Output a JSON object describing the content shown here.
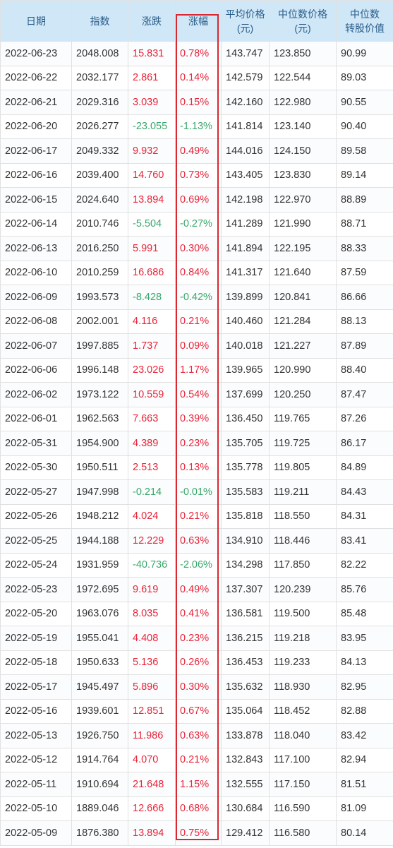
{
  "headers": {
    "date": [
      "日期"
    ],
    "index": [
      "指数"
    ],
    "change": [
      "涨跌"
    ],
    "pct": [
      "涨幅"
    ],
    "avg_price": [
      "平均价格",
      "(元)"
    ],
    "median_price": [
      "中位数价格",
      "(元)"
    ],
    "median_conv": [
      "中位数",
      "转股价值"
    ]
  },
  "rows": [
    {
      "date": "2022-06-23",
      "index": "2048.008",
      "change": "15.831",
      "pct": "0.78%",
      "avg": "143.747",
      "median": "123.850",
      "conv": "90.99",
      "dir": "up"
    },
    {
      "date": "2022-06-22",
      "index": "2032.177",
      "change": "2.861",
      "pct": "0.14%",
      "avg": "142.579",
      "median": "122.544",
      "conv": "89.03",
      "dir": "up"
    },
    {
      "date": "2022-06-21",
      "index": "2029.316",
      "change": "3.039",
      "pct": "0.15%",
      "avg": "142.160",
      "median": "122.980",
      "conv": "90.55",
      "dir": "up"
    },
    {
      "date": "2022-06-20",
      "index": "2026.277",
      "change": "-23.055",
      "pct": "-1.13%",
      "avg": "141.814",
      "median": "123.140",
      "conv": "90.40",
      "dir": "down"
    },
    {
      "date": "2022-06-17",
      "index": "2049.332",
      "change": "9.932",
      "pct": "0.49%",
      "avg": "144.016",
      "median": "124.150",
      "conv": "89.58",
      "dir": "up"
    },
    {
      "date": "2022-06-16",
      "index": "2039.400",
      "change": "14.760",
      "pct": "0.73%",
      "avg": "143.405",
      "median": "123.830",
      "conv": "89.14",
      "dir": "up"
    },
    {
      "date": "2022-06-15",
      "index": "2024.640",
      "change": "13.894",
      "pct": "0.69%",
      "avg": "142.198",
      "median": "122.970",
      "conv": "88.89",
      "dir": "up"
    },
    {
      "date": "2022-06-14",
      "index": "2010.746",
      "change": "-5.504",
      "pct": "-0.27%",
      "avg": "141.289",
      "median": "121.990",
      "conv": "88.71",
      "dir": "down"
    },
    {
      "date": "2022-06-13",
      "index": "2016.250",
      "change": "5.991",
      "pct": "0.30%",
      "avg": "141.894",
      "median": "122.195",
      "conv": "88.33",
      "dir": "up"
    },
    {
      "date": "2022-06-10",
      "index": "2010.259",
      "change": "16.686",
      "pct": "0.84%",
      "avg": "141.317",
      "median": "121.640",
      "conv": "87.59",
      "dir": "up"
    },
    {
      "date": "2022-06-09",
      "index": "1993.573",
      "change": "-8.428",
      "pct": "-0.42%",
      "avg": "139.899",
      "median": "120.841",
      "conv": "86.66",
      "dir": "down"
    },
    {
      "date": "2022-06-08",
      "index": "2002.001",
      "change": "4.116",
      "pct": "0.21%",
      "avg": "140.460",
      "median": "121.284",
      "conv": "88.13",
      "dir": "up"
    },
    {
      "date": "2022-06-07",
      "index": "1997.885",
      "change": "1.737",
      "pct": "0.09%",
      "avg": "140.018",
      "median": "121.227",
      "conv": "87.89",
      "dir": "up"
    },
    {
      "date": "2022-06-06",
      "index": "1996.148",
      "change": "23.026",
      "pct": "1.17%",
      "avg": "139.965",
      "median": "120.990",
      "conv": "88.40",
      "dir": "up"
    },
    {
      "date": "2022-06-02",
      "index": "1973.122",
      "change": "10.559",
      "pct": "0.54%",
      "avg": "137.699",
      "median": "120.250",
      "conv": "87.47",
      "dir": "up"
    },
    {
      "date": "2022-06-01",
      "index": "1962.563",
      "change": "7.663",
      "pct": "0.39%",
      "avg": "136.450",
      "median": "119.765",
      "conv": "87.26",
      "dir": "up"
    },
    {
      "date": "2022-05-31",
      "index": "1954.900",
      "change": "4.389",
      "pct": "0.23%",
      "avg": "135.705",
      "median": "119.725",
      "conv": "86.17",
      "dir": "up"
    },
    {
      "date": "2022-05-30",
      "index": "1950.511",
      "change": "2.513",
      "pct": "0.13%",
      "avg": "135.778",
      "median": "119.805",
      "conv": "84.89",
      "dir": "up"
    },
    {
      "date": "2022-05-27",
      "index": "1947.998",
      "change": "-0.214",
      "pct": "-0.01%",
      "avg": "135.583",
      "median": "119.211",
      "conv": "84.43",
      "dir": "down"
    },
    {
      "date": "2022-05-26",
      "index": "1948.212",
      "change": "4.024",
      "pct": "0.21%",
      "avg": "135.818",
      "median": "118.550",
      "conv": "84.31",
      "dir": "up"
    },
    {
      "date": "2022-05-25",
      "index": "1944.188",
      "change": "12.229",
      "pct": "0.63%",
      "avg": "134.910",
      "median": "118.446",
      "conv": "83.41",
      "dir": "up"
    },
    {
      "date": "2022-05-24",
      "index": "1931.959",
      "change": "-40.736",
      "pct": "-2.06%",
      "avg": "134.298",
      "median": "117.850",
      "conv": "82.22",
      "dir": "down"
    },
    {
      "date": "2022-05-23",
      "index": "1972.695",
      "change": "9.619",
      "pct": "0.49%",
      "avg": "137.307",
      "median": "120.239",
      "conv": "85.76",
      "dir": "up"
    },
    {
      "date": "2022-05-20",
      "index": "1963.076",
      "change": "8.035",
      "pct": "0.41%",
      "avg": "136.581",
      "median": "119.500",
      "conv": "85.48",
      "dir": "up"
    },
    {
      "date": "2022-05-19",
      "index": "1955.041",
      "change": "4.408",
      "pct": "0.23%",
      "avg": "136.215",
      "median": "119.218",
      "conv": "83.95",
      "dir": "up"
    },
    {
      "date": "2022-05-18",
      "index": "1950.633",
      "change": "5.136",
      "pct": "0.26%",
      "avg": "136.453",
      "median": "119.233",
      "conv": "84.13",
      "dir": "up"
    },
    {
      "date": "2022-05-17",
      "index": "1945.497",
      "change": "5.896",
      "pct": "0.30%",
      "avg": "135.632",
      "median": "118.930",
      "conv": "82.95",
      "dir": "up"
    },
    {
      "date": "2022-05-16",
      "index": "1939.601",
      "change": "12.851",
      "pct": "0.67%",
      "avg": "135.064",
      "median": "118.452",
      "conv": "82.88",
      "dir": "up"
    },
    {
      "date": "2022-05-13",
      "index": "1926.750",
      "change": "11.986",
      "pct": "0.63%",
      "avg": "133.878",
      "median": "118.040",
      "conv": "83.42",
      "dir": "up"
    },
    {
      "date": "2022-05-12",
      "index": "1914.764",
      "change": "4.070",
      "pct": "0.21%",
      "avg": "132.843",
      "median": "117.100",
      "conv": "82.94",
      "dir": "up"
    },
    {
      "date": "2022-05-11",
      "index": "1910.694",
      "change": "21.648",
      "pct": "1.15%",
      "avg": "132.555",
      "median": "117.150",
      "conv": "81.51",
      "dir": "up"
    },
    {
      "date": "2022-05-10",
      "index": "1889.046",
      "change": "12.666",
      "pct": "0.68%",
      "avg": "130.684",
      "median": "116.590",
      "conv": "81.09",
      "dir": "up"
    },
    {
      "date": "2022-05-09",
      "index": "1876.380",
      "change": "13.894",
      "pct": "0.75%",
      "avg": "129.412",
      "median": "116.580",
      "conv": "80.14",
      "dir": "up"
    }
  ],
  "colors": {
    "header_bg": "#cfe7f7",
    "header_text": "#2a5d8a",
    "up": "#e8253a",
    "down": "#3aa86b",
    "highlight_border": "#d9282f"
  }
}
